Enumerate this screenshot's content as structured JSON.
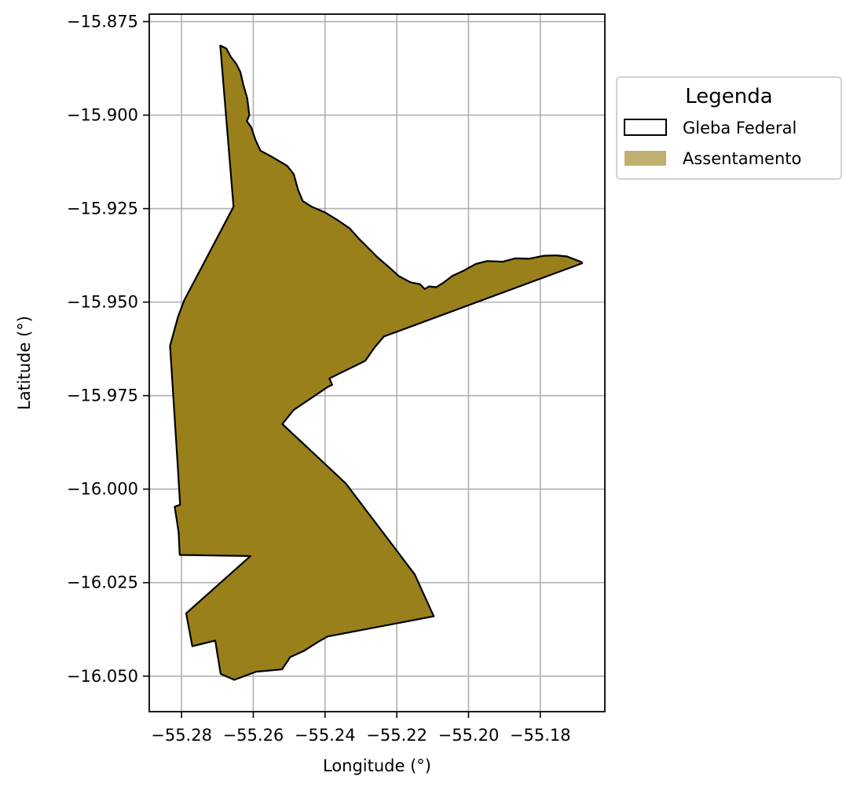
{
  "map": {
    "xlabel": "Longitude (°)",
    "ylabel": "Latitude (°)",
    "x_ticks": [
      {
        "value": -55.28,
        "label": "−55.28"
      },
      {
        "value": -55.26,
        "label": "−55.26"
      },
      {
        "value": -55.24,
        "label": "−55.24"
      },
      {
        "value": -55.22,
        "label": "−55.22"
      },
      {
        "value": -55.2,
        "label": "−55.20"
      },
      {
        "value": -55.18,
        "label": "−55.18"
      }
    ],
    "y_ticks": [
      {
        "value": -15.875,
        "label": "−15.875"
      },
      {
        "value": -15.9,
        "label": "−15.900"
      },
      {
        "value": -15.925,
        "label": "−15.925"
      },
      {
        "value": -15.95,
        "label": "−15.950"
      },
      {
        "value": -15.975,
        "label": "−15.975"
      },
      {
        "value": -16.0,
        "label": "−16.000"
      },
      {
        "value": -16.025,
        "label": "−16.025"
      },
      {
        "value": -16.05,
        "label": "−16.050"
      }
    ],
    "xlim": [
      -55.289,
      -55.162
    ],
    "ylim": [
      -16.0595,
      -15.873
    ],
    "grid": true,
    "fill_color": "#99801a",
    "legend_patch_color": "#bfb06f",
    "outline_color": "#000000",
    "legend": {
      "title": "Legenda",
      "position": "outside-upper-right",
      "items": [
        {
          "label": "Gleba Federal",
          "style": "outline"
        },
        {
          "label": "Assentamento",
          "style": "fill"
        }
      ]
    },
    "polygon": [
      [
        -55.2692,
        -15.8814
      ],
      [
        -55.2675,
        -15.8822
      ],
      [
        -55.2662,
        -15.8845
      ],
      [
        -55.2648,
        -15.8862
      ],
      [
        -55.2636,
        -15.8885
      ],
      [
        -55.2628,
        -15.8918
      ],
      [
        -55.2617,
        -15.8955
      ],
      [
        -55.2611,
        -15.9
      ],
      [
        -55.2618,
        -15.9016
      ],
      [
        -55.2606,
        -15.9032
      ],
      [
        -55.2594,
        -15.9066
      ],
      [
        -55.258,
        -15.9095
      ],
      [
        -55.2547,
        -15.9112
      ],
      [
        -55.2519,
        -15.9128
      ],
      [
        -55.2505,
        -15.9136
      ],
      [
        -55.2487,
        -15.9158
      ],
      [
        -55.2475,
        -15.92
      ],
      [
        -55.2462,
        -15.923
      ],
      [
        -55.2437,
        -15.9245
      ],
      [
        -55.24,
        -15.926
      ],
      [
        -55.2366,
        -15.928
      ],
      [
        -55.2331,
        -15.9303
      ],
      [
        -55.2306,
        -15.933
      ],
      [
        -55.2282,
        -15.9353
      ],
      [
        -55.2254,
        -15.938
      ],
      [
        -55.222,
        -15.9408
      ],
      [
        -55.2195,
        -15.943
      ],
      [
        -55.2162,
        -15.9447
      ],
      [
        -55.2135,
        -15.9452
      ],
      [
        -55.2122,
        -15.9465
      ],
      [
        -55.211,
        -15.9458
      ],
      [
        -55.209,
        -15.946
      ],
      [
        -55.207,
        -15.9448
      ],
      [
        -55.2045,
        -15.943
      ],
      [
        -55.2012,
        -15.9415
      ],
      [
        -55.198,
        -15.9398
      ],
      [
        -55.1948,
        -15.939
      ],
      [
        -55.1905,
        -15.9392
      ],
      [
        -55.187,
        -15.9383
      ],
      [
        -55.1832,
        -15.9384
      ],
      [
        -55.179,
        -15.9376
      ],
      [
        -55.1755,
        -15.9375
      ],
      [
        -55.1725,
        -15.9378
      ],
      [
        -55.1685,
        -15.9393
      ],
      [
        -55.1683,
        -15.9396
      ],
      [
        -55.2236,
        -15.9592
      ],
      [
        -55.226,
        -15.9619
      ],
      [
        -55.2288,
        -15.9657
      ],
      [
        -55.2388,
        -15.9704
      ],
      [
        -55.238,
        -15.9721
      ],
      [
        -55.2391,
        -15.9726
      ],
      [
        -55.2487,
        -15.9788
      ],
      [
        -55.2519,
        -15.9826
      ],
      [
        -55.2342,
        -15.9985
      ],
      [
        -55.215,
        -16.0228
      ],
      [
        -55.2097,
        -16.034
      ],
      [
        -55.2393,
        -16.0394
      ],
      [
        -55.2422,
        -16.041
      ],
      [
        -55.246,
        -16.0433
      ],
      [
        -55.2497,
        -16.0449
      ],
      [
        -55.252,
        -16.0482
      ],
      [
        -55.2592,
        -16.0488
      ],
      [
        -55.2653,
        -16.051
      ],
      [
        -55.2691,
        -16.0494
      ],
      [
        -55.2706,
        -16.0405
      ],
      [
        -55.277,
        -16.042
      ],
      [
        -55.2787,
        -16.0332
      ],
      [
        -55.2608,
        -16.0179
      ],
      [
        -55.2805,
        -16.0176
      ],
      [
        -55.2808,
        -16.0115
      ],
      [
        -55.2819,
        -16.0047
      ],
      [
        -55.2804,
        -16.0042
      ],
      [
        -55.2811,
        -15.9932
      ],
      [
        -55.2832,
        -15.9617
      ],
      [
        -55.281,
        -15.954
      ],
      [
        -55.2793,
        -15.9496
      ],
      [
        -55.2655,
        -15.9245
      ],
      [
        -55.2692,
        -15.8814
      ]
    ]
  }
}
